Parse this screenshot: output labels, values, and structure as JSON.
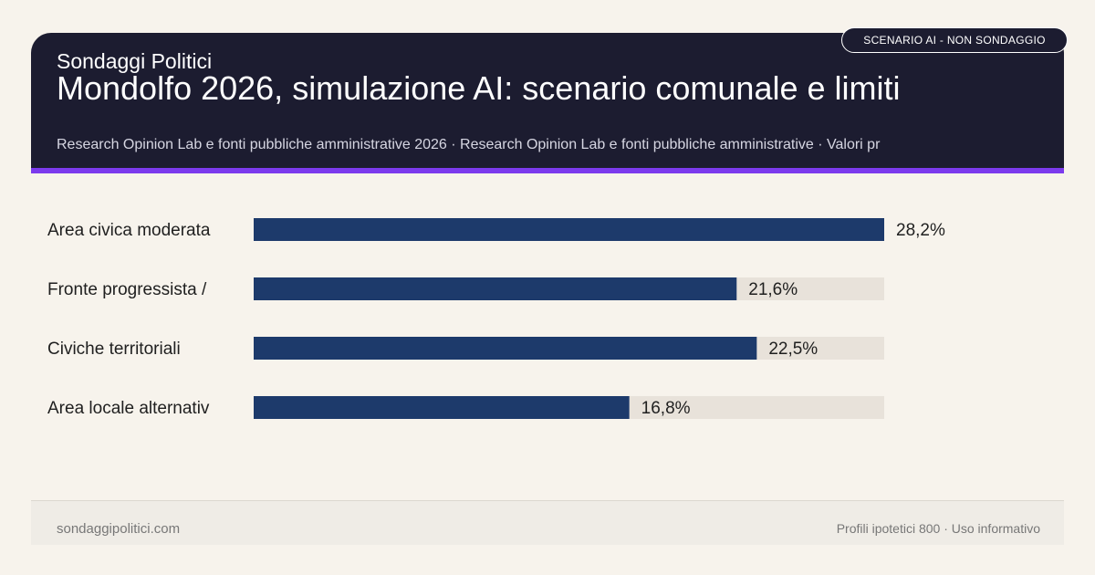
{
  "header": {
    "brand": "Sondaggi Politici",
    "title": "Mondolfo 2026, simulazione AI: scenario comunale e limiti",
    "subtitle": "Research Opinion Lab e fonti pubbliche amministrative 2026 · Research Opinion Lab e fonti pubbliche amministrative · Valori pr",
    "badge": "SCENARIO AI - NON SONDAGGIO"
  },
  "colors": {
    "header_bg": "#1c1c30",
    "accent": "#7c3aed",
    "bar_fill": "#1d3a6b",
    "bar_track": "#e8e2da",
    "page_bg": "#f7f3ec"
  },
  "chart_data": {
    "type": "bar",
    "orientation": "horizontal",
    "categories": [
      "Area civica moderata",
      "Fronte progressista /",
      "Civiche territoriali",
      "Area locale alternativ"
    ],
    "values": [
      28.2,
      21.6,
      22.5,
      16.8
    ],
    "value_labels": [
      "28,2%",
      "21,6%",
      "22,5%",
      "16,8%"
    ],
    "xlim": [
      0,
      28.2
    ],
    "unit": "%",
    "grid": false,
    "legend": "none"
  },
  "footer": {
    "site": "sondaggipolitici.com",
    "note": "Profili ipotetici 800 · Uso informativo"
  }
}
